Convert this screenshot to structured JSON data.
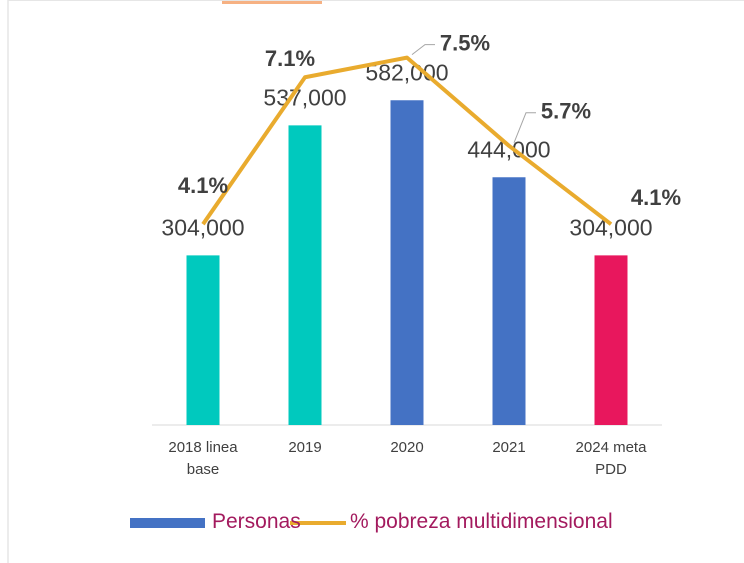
{
  "chart_data": {
    "type": "bar_line",
    "categories": [
      "2018 linea base",
      "2019",
      "2020",
      "2021",
      "2024 meta PDD"
    ],
    "ylim": [
      0,
      690000
    ],
    "y2lim": [
      0,
      7.86
    ],
    "series": [
      {
        "name": "Personas",
        "type": "bar",
        "color": "#4472c4",
        "colors": [
          "#00c9be",
          "#00c9be",
          "#4472c4",
          "#4472c4",
          "#e8175d"
        ],
        "values": [
          304000,
          537000,
          582000,
          444000,
          304000
        ],
        "value_labels": [
          "304,000",
          "537,000",
          "582,000",
          "444,000",
          "304,000"
        ]
      },
      {
        "name": "% pobreza multidimensional",
        "type": "line",
        "axis": "y2",
        "color": "#e9ab2e",
        "values": [
          4.1,
          7.1,
          7.5,
          5.7,
          4.1
        ],
        "value_labels": [
          "4.1%",
          "7.1%",
          "7.5%",
          "5.7%",
          "4.1%"
        ]
      }
    ],
    "legend": "bottom"
  }
}
